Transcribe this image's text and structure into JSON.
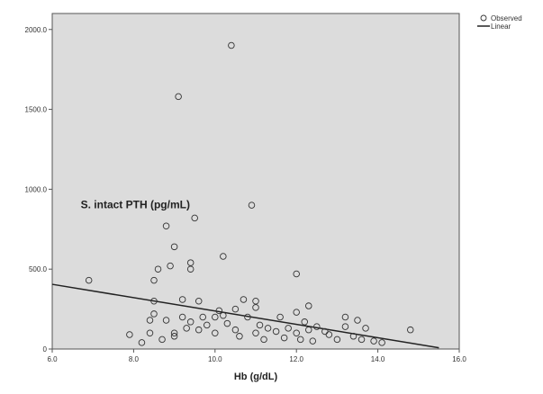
{
  "chart_data": {
    "type": "scatter",
    "title": "",
    "xlabel": "Hb (g/dL)",
    "ylabel": "",
    "xlim": [
      6.0,
      16.0
    ],
    "ylim": [
      0,
      2100
    ],
    "x_ticks": [
      6.0,
      8.0,
      10.0,
      12.0,
      14.0,
      16.0
    ],
    "x_tick_labels": [
      "6.0",
      "8.0",
      "10.0",
      "12.0",
      "14.0",
      "16.0"
    ],
    "y_ticks": [
      0,
      500,
      1000,
      1500,
      2000
    ],
    "y_tick_labels": [
      "0",
      "500.0",
      "1000.0",
      "1500.0",
      "2000.0"
    ],
    "grid": false,
    "annotation": "S. intact PTH (pg/mL)",
    "legend": {
      "placement": "top-right outside plot",
      "entries": [
        {
          "label": "Observed",
          "marker": "open-circle"
        },
        {
          "label": "Linear",
          "marker": "line"
        }
      ]
    },
    "colors": {
      "plot_background": "#dcdcdc",
      "marker_stroke": "#333333",
      "fit_line": "#222222"
    },
    "fit_line": {
      "x": [
        6.0,
        15.5
      ],
      "y": [
        405,
        8
      ]
    },
    "series": [
      {
        "name": "Observed",
        "points": [
          [
            6.9,
            430
          ],
          [
            7.9,
            90
          ],
          [
            8.2,
            40
          ],
          [
            8.4,
            100
          ],
          [
            8.4,
            180
          ],
          [
            8.5,
            220
          ],
          [
            8.5,
            300
          ],
          [
            8.5,
            430
          ],
          [
            8.6,
            500
          ],
          [
            8.7,
            60
          ],
          [
            8.8,
            770
          ],
          [
            8.8,
            180
          ],
          [
            8.9,
            520
          ],
          [
            9.0,
            640
          ],
          [
            9.0,
            100
          ],
          [
            9.0,
            80
          ],
          [
            9.1,
            1580
          ],
          [
            9.2,
            310
          ],
          [
            9.2,
            200
          ],
          [
            9.3,
            130
          ],
          [
            9.4,
            540
          ],
          [
            9.4,
            500
          ],
          [
            9.4,
            170
          ],
          [
            9.5,
            820
          ],
          [
            9.6,
            300
          ],
          [
            9.6,
            120
          ],
          [
            9.7,
            200
          ],
          [
            9.8,
            150
          ],
          [
            10.0,
            200
          ],
          [
            10.0,
            100
          ],
          [
            10.1,
            240
          ],
          [
            10.2,
            580
          ],
          [
            10.2,
            210
          ],
          [
            10.3,
            160
          ],
          [
            10.4,
            1900
          ],
          [
            10.5,
            250
          ],
          [
            10.5,
            120
          ],
          [
            10.6,
            80
          ],
          [
            10.7,
            310
          ],
          [
            10.8,
            200
          ],
          [
            10.9,
            900
          ],
          [
            11.0,
            300
          ],
          [
            11.0,
            260
          ],
          [
            11.0,
            100
          ],
          [
            11.1,
            150
          ],
          [
            11.2,
            60
          ],
          [
            11.3,
            130
          ],
          [
            11.5,
            110
          ],
          [
            11.6,
            200
          ],
          [
            11.7,
            70
          ],
          [
            11.8,
            130
          ],
          [
            12.0,
            470
          ],
          [
            12.0,
            230
          ],
          [
            12.0,
            100
          ],
          [
            12.1,
            60
          ],
          [
            12.2,
            170
          ],
          [
            12.3,
            270
          ],
          [
            12.3,
            120
          ],
          [
            12.4,
            50
          ],
          [
            12.5,
            140
          ],
          [
            12.7,
            110
          ],
          [
            12.8,
            90
          ],
          [
            13.0,
            60
          ],
          [
            13.2,
            200
          ],
          [
            13.2,
            140
          ],
          [
            13.4,
            80
          ],
          [
            13.5,
            180
          ],
          [
            13.6,
            60
          ],
          [
            13.7,
            130
          ],
          [
            13.9,
            50
          ],
          [
            14.1,
            40
          ],
          [
            14.8,
            120
          ]
        ]
      }
    ]
  }
}
